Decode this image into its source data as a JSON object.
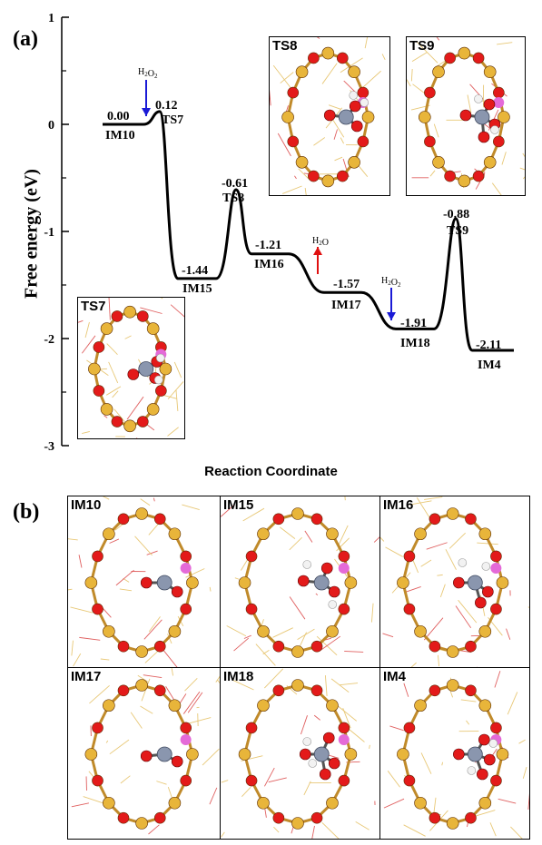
{
  "panel_a_label": "(a)",
  "panel_b_label": "(b)",
  "y_axis_title": "Free energy (eV)",
  "x_axis_title": "Reaction Coordinate",
  "y_ticks": [
    "1",
    "0",
    "-1",
    "-2",
    "-3"
  ],
  "chart_data": {
    "type": "line",
    "ylabel": "Free energy (eV)",
    "xlabel": "Reaction Coordinate",
    "ylim": [
      -3,
      1
    ],
    "states": [
      {
        "name": "IM10",
        "energy": 0.0,
        "label": "0.00"
      },
      {
        "name": "TS7",
        "energy": 0.12,
        "label": "0.12"
      },
      {
        "name": "IM15",
        "energy": -1.44,
        "label": "-1.44"
      },
      {
        "name": "TS8",
        "energy": -0.61,
        "label": "-0.61"
      },
      {
        "name": "IM16",
        "energy": -1.21,
        "label": "-1.21"
      },
      {
        "name": "IM17",
        "energy": -1.57,
        "label": "-1.57"
      },
      {
        "name": "IM18",
        "energy": -1.91,
        "label": "-1.91"
      },
      {
        "name": "TS9",
        "energy": -0.88,
        "label": "-0.88"
      },
      {
        "name": "IM4",
        "energy": -2.11,
        "label": "-2.11"
      }
    ],
    "arrows": [
      {
        "label": "H2O2",
        "direction": "down",
        "color": "#1a1ad6",
        "position": "IM10-TS7"
      },
      {
        "label": "H2O",
        "direction": "up",
        "color": "#e01010",
        "position": "IM16-IM17"
      },
      {
        "label": "H2O2",
        "direction": "down",
        "color": "#1a1ad6",
        "position": "IM17-IM18"
      }
    ]
  },
  "insets": [
    {
      "label": "TS7"
    },
    {
      "label": "TS8"
    },
    {
      "label": "TS9"
    }
  ],
  "tiles": [
    {
      "label": "IM10"
    },
    {
      "label": "IM15"
    },
    {
      "label": "IM16"
    },
    {
      "label": "IM17"
    },
    {
      "label": "IM18"
    },
    {
      "label": "IM4"
    }
  ],
  "colors": {
    "oxygen": "#e31a1a",
    "silicon": "#e8b53a",
    "metal": "#8a96ae",
    "hydrogen": "#f2f2f2",
    "pink_atom": "#e46ad8",
    "framework": "#e8c877"
  }
}
